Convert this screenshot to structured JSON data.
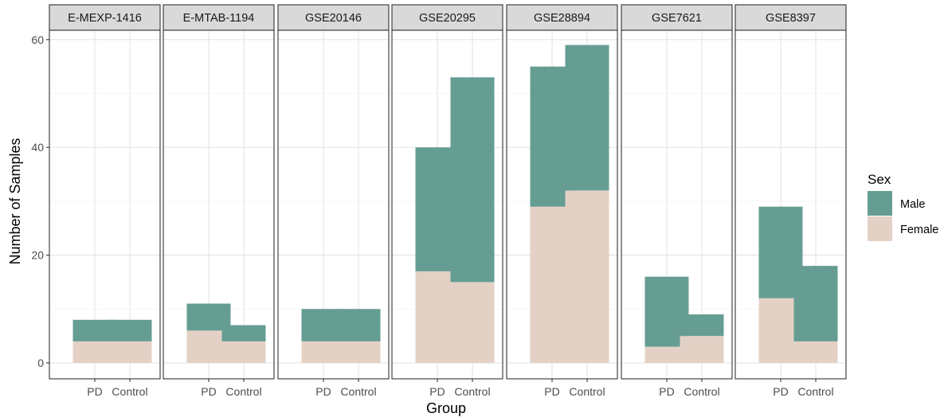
{
  "chart_data": {
    "type": "bar",
    "stacked": true,
    "faceted": true,
    "xlabel": "Group",
    "ylabel": "Number of Samples",
    "categories": [
      "PD",
      "Control"
    ],
    "ylim": [
      0,
      63
    ],
    "yticks": [
      0,
      20,
      40,
      60
    ],
    "grid": true,
    "legend": {
      "title": "Sex",
      "position": "right",
      "entries": [
        {
          "name": "Male",
          "color": "#669d93"
        },
        {
          "name": "Female",
          "color": "#e3d1c5"
        }
      ]
    },
    "panels": [
      {
        "title": "E-MEXP-1416",
        "female": [
          4,
          4
        ],
        "male": [
          4,
          4
        ]
      },
      {
        "title": "E-MTAB-1194",
        "female": [
          6,
          4
        ],
        "male": [
          5,
          3
        ]
      },
      {
        "title": "GSE20146",
        "female": [
          4,
          4
        ],
        "male": [
          6,
          6
        ]
      },
      {
        "title": "GSE20295",
        "female": [
          17,
          15
        ],
        "male": [
          23,
          38
        ]
      },
      {
        "title": "GSE28894",
        "female": [
          29,
          32
        ],
        "male": [
          26,
          27
        ]
      },
      {
        "title": "GSE7621",
        "female": [
          3,
          5
        ],
        "male": [
          13,
          4
        ]
      },
      {
        "title": "GSE8397",
        "female": [
          12,
          4
        ],
        "male": [
          17,
          14
        ]
      }
    ]
  }
}
